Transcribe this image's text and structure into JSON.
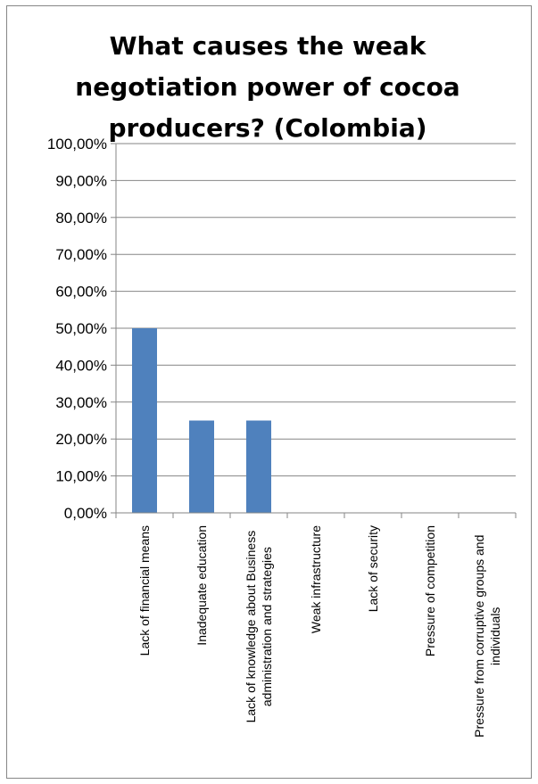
{
  "chart_data": {
    "type": "bar",
    "title": "What causes the weak negotiation power of cocoa producers? (Colombia)",
    "categories": [
      "Lack of financial means",
      "Inadequate education",
      "Lack of knowledge about Business administration and strategies",
      "Weak infrastructure",
      "Lack of security",
      "Pressure of competition",
      "Pressure from corruptive groups and individuals"
    ],
    "category_lines": [
      [
        "Lack of financial means"
      ],
      [
        "Inadequate education"
      ],
      [
        "Lack of knowledge about Business",
        "administration and strategies"
      ],
      [
        "Weak infrastructure"
      ],
      [
        "Lack of security"
      ],
      [
        "Pressure of competition"
      ],
      [
        "Pressure from corruptive groups and",
        "individuals"
      ]
    ],
    "values": [
      0.5,
      0.25,
      0.25,
      0,
      0,
      0,
      0
    ],
    "ylim": [
      0,
      1
    ],
    "yticks": [
      0,
      0.1,
      0.2,
      0.3,
      0.4,
      0.5,
      0.6,
      0.7,
      0.8,
      0.9,
      1.0
    ],
    "ytick_labels": [
      "0,00%",
      "10,00%",
      "20,00%",
      "30,00%",
      "40,00%",
      "50,00%",
      "60,00%",
      "70,00%",
      "80,00%",
      "90,00%",
      "100,00%"
    ],
    "xlabel": "",
    "ylabel": "",
    "grid": true,
    "legend": "none",
    "colors": {
      "bar": "#4f81bd",
      "grid": "#868686",
      "axis": "#868686"
    }
  }
}
